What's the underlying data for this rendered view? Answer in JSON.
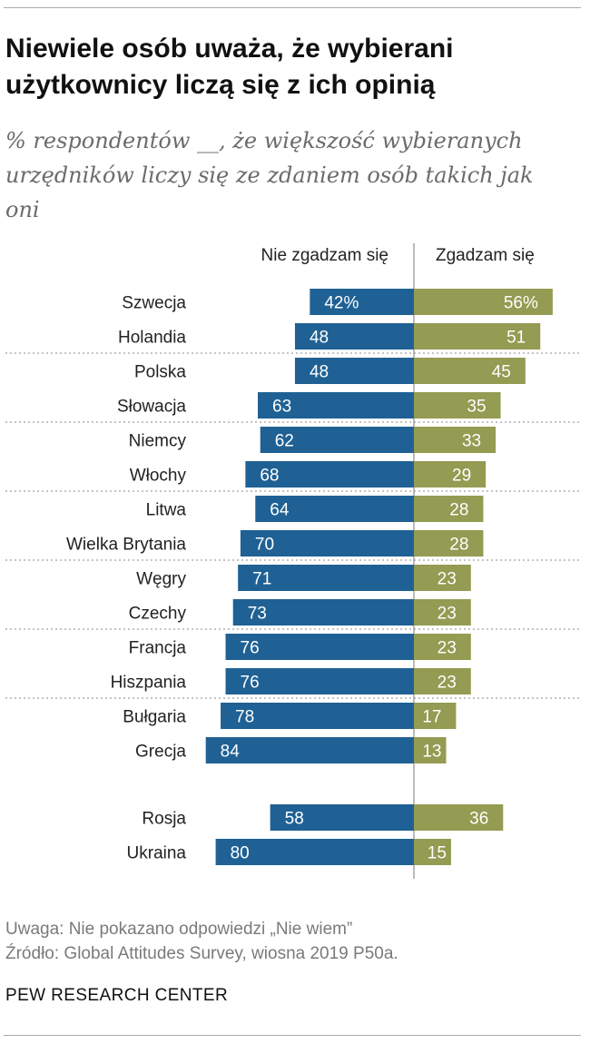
{
  "title": "Niewiele osób uważa, że wybierani użytkownicy liczą się z ich opinią",
  "subtitle": "% respondentów __, że większość wybieranych urzędników liczy się ze zdaniem osób takich jak oni",
  "chart_data": {
    "type": "bar",
    "orientation": "diverging-horizontal",
    "categories": [
      "Szwecja",
      "Holandia",
      "Polska",
      "Słowacja",
      "Niemcy",
      "Włochy",
      "Litwa",
      "Wielka Brytania",
      "Węgry",
      "Czechy",
      "Francja",
      "Hiszpania",
      "Bułgaria",
      "Grecja",
      "Rosja",
      "Ukraina"
    ],
    "series": [
      {
        "name": "Nie zgadzam się",
        "color": "#1f6194",
        "values": [
          42,
          48,
          48,
          63,
          62,
          68,
          64,
          70,
          71,
          73,
          76,
          76,
          78,
          84,
          58,
          80
        ]
      },
      {
        "name": "Zgadzam się",
        "color": "#949b52",
        "values": [
          56,
          51,
          45,
          35,
          33,
          29,
          28,
          28,
          23,
          23,
          23,
          23,
          17,
          13,
          36,
          15
        ]
      }
    ],
    "percent_suffix_first_row": true,
    "grid": false
  },
  "footer": {
    "note": "Uwaga: Nie pokazano odpowiedzi „Nie wiem”",
    "source": "Źródło: Global Attitudes Survey, wiosna 2019 P50a.",
    "org": "PEW RESEARCH CENTER"
  }
}
